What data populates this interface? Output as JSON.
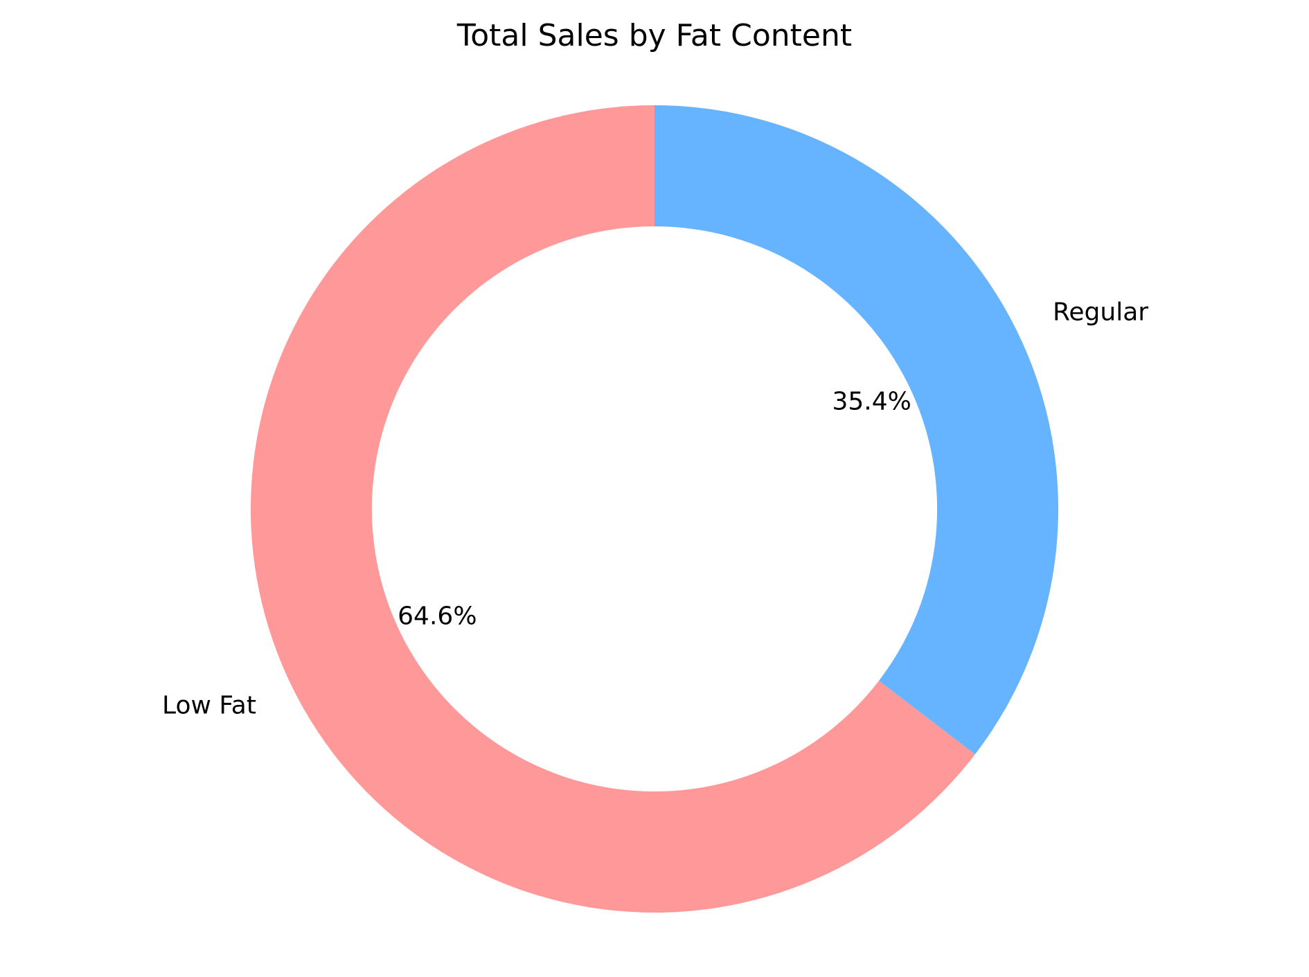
{
  "chart_data": {
    "type": "pie",
    "variant": "donut",
    "title": "Total Sales by Fat Content",
    "categories": [
      "Low Fat",
      "Regular"
    ],
    "values": [
      64.6,
      35.4
    ],
    "labels": [
      "64.6%",
      "35.4%"
    ],
    "colors": [
      "#ff9999",
      "#66b3ff"
    ],
    "start_angle_deg": 90,
    "direction": "counterclockwise",
    "inner_radius_ratio": 0.7,
    "legend": "none"
  }
}
